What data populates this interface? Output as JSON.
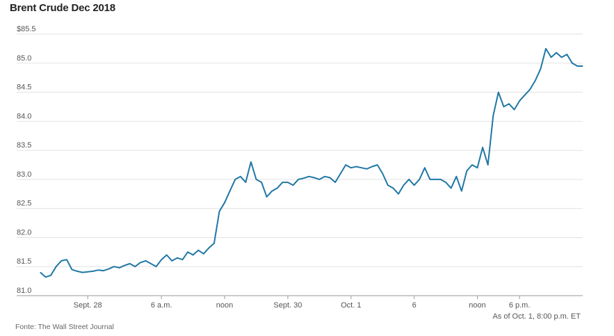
{
  "title": "Brent Crude Dec 2018",
  "as_of": "As of Oct. 1, 8:00 p.m. ET",
  "source": "Fonte: The Wall Street Journal",
  "colors": {
    "line": "#1f77a4",
    "grid": "#e2e2e2",
    "axis": "#999999"
  },
  "chart_data": {
    "type": "line",
    "title": "Brent Crude Dec 2018",
    "xlabel": "",
    "ylabel": "",
    "ylim": [
      81.0,
      85.5
    ],
    "yticks": [
      {
        "value": 85.5,
        "label": "$85.5"
      },
      {
        "value": 85.0,
        "label": "85.0"
      },
      {
        "value": 84.5,
        "label": "84.5"
      },
      {
        "value": 84.0,
        "label": "84.0"
      },
      {
        "value": 83.5,
        "label": "83.5"
      },
      {
        "value": 83.0,
        "label": "83.0"
      },
      {
        "value": 82.5,
        "label": "82.5"
      },
      {
        "value": 82.0,
        "label": "82.0"
      },
      {
        "value": 81.5,
        "label": "81.5"
      },
      {
        "value": 81.0,
        "label": "81.0"
      }
    ],
    "xticks": [
      {
        "label": "Sept. 28",
        "index": 9
      },
      {
        "label": "6 a.m.",
        "index": 23
      },
      {
        "label": "noon",
        "index": 35
      },
      {
        "label": "Sept. 30",
        "index": 47
      },
      {
        "label": "Oct. 1",
        "index": 59
      },
      {
        "label": "6",
        "index": 71
      },
      {
        "label": "noon",
        "index": 83
      },
      {
        "label": "6 p.m.",
        "index": 91
      }
    ],
    "grid": true,
    "series": [
      {
        "values": [
          81.4,
          81.32,
          81.35,
          81.5,
          81.6,
          81.62,
          81.45,
          81.42,
          81.4,
          81.41,
          81.42,
          81.44,
          81.43,
          81.46,
          81.5,
          81.48,
          81.52,
          81.55,
          81.5,
          81.57,
          81.6,
          81.55,
          81.5,
          81.62,
          81.7,
          81.6,
          81.65,
          81.62,
          81.75,
          81.7,
          81.78,
          81.72,
          81.82,
          81.9,
          82.45,
          82.6,
          82.8,
          83.0,
          83.05,
          82.95,
          83.3,
          83.0,
          82.95,
          82.7,
          82.8,
          82.85,
          82.95,
          82.95,
          82.9,
          83.0,
          83.02,
          83.05,
          83.03,
          83.0,
          83.05,
          83.03,
          82.95,
          83.1,
          83.25,
          83.2,
          83.22,
          83.2,
          83.18,
          83.22,
          83.25,
          83.1,
          82.9,
          82.85,
          82.75,
          82.9,
          83.0,
          82.9,
          83.0,
          83.2,
          83.0,
          83.0,
          83.0,
          82.95,
          82.85,
          83.05,
          82.8,
          83.15,
          83.25,
          83.2,
          83.55,
          83.25,
          84.1,
          84.5,
          84.25,
          84.3,
          84.2,
          84.35,
          84.45,
          84.55,
          84.7,
          84.9,
          85.25,
          85.1,
          85.18,
          85.1,
          85.15,
          85.0,
          84.95,
          84.95
        ]
      }
    ]
  }
}
